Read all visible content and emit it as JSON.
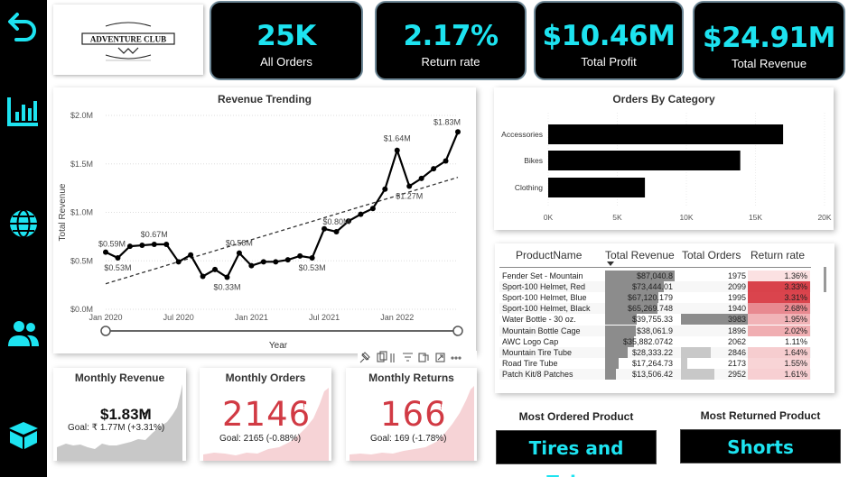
{
  "nav": {
    "items": [
      "back-arrow-icon",
      "chart-icon",
      "globe-icon",
      "users-icon",
      "box-icon"
    ]
  },
  "logo": {
    "text": "ADVENTURE CLUB"
  },
  "kpis": [
    {
      "value": "25K",
      "label": "All Orders"
    },
    {
      "value": "2.17%",
      "label": "Return rate"
    },
    {
      "value": "$10.46M",
      "label": "Total Profit"
    },
    {
      "value": "$24.91M",
      "label": "Total Revenue"
    }
  ],
  "revenue_chart": {
    "title": "Revenue Trending",
    "ylabel": "Total Revenue",
    "xlabel": "Year",
    "y_ticks": [
      "$2.0M",
      "$1.5M",
      "$1.0M",
      "$0.5M",
      "$0.0M"
    ],
    "x_ticks": [
      "Jan 2020",
      "Jul 2020",
      "Jan 2021",
      "Jul 2021",
      "Jan 2022"
    ],
    "data_labels": [
      "$0.59M",
      "$0.53M",
      "$0.67M",
      "$0.33M",
      "$0.58M",
      "$0.80M",
      "$0.53M",
      "$1.64M",
      "$1.27M",
      "$1.83M"
    ]
  },
  "chart_data": [
    {
      "type": "line",
      "title": "Revenue Trending",
      "xlabel": "Year",
      "ylabel": "Total Revenue",
      "ylim": [
        0,
        2.0
      ],
      "x": [
        "2020-01",
        "2020-02",
        "2020-03",
        "2020-04",
        "2020-05",
        "2020-06",
        "2020-07",
        "2020-08",
        "2020-09",
        "2020-10",
        "2020-11",
        "2020-12",
        "2021-01",
        "2021-02",
        "2021-03",
        "2021-04",
        "2021-05",
        "2021-06",
        "2021-07",
        "2021-08",
        "2021-09",
        "2021-10",
        "2021-11",
        "2021-12",
        "2022-01",
        "2022-02",
        "2022-03",
        "2022-04",
        "2022-05",
        "2022-06"
      ],
      "series": [
        {
          "values": [
            0.59,
            0.53,
            0.65,
            0.66,
            0.67,
            0.67,
            0.49,
            0.56,
            0.34,
            0.41,
            0.33,
            0.58,
            0.45,
            0.49,
            0.49,
            0.51,
            0.55,
            0.53,
            0.83,
            0.8,
            0.91,
            0.98,
            1.04,
            1.24,
            1.64,
            1.27,
            1.35,
            1.45,
            1.53,
            1.83
          ]
        }
      ],
      "trend_line": true,
      "grid": true
    },
    {
      "type": "bar",
      "title": "Orders By Category",
      "categories": [
        "Accessories",
        "Bikes",
        "Clothing"
      ],
      "values": [
        17000,
        13900,
        7000
      ],
      "xticks": [
        "0K",
        "5K",
        "10K",
        "15K",
        "20K"
      ],
      "xlim": [
        0,
        20000
      ]
    }
  ],
  "category_chart": {
    "title": "Orders By Category",
    "categories": [
      "Accessories",
      "Bikes",
      "Clothing"
    ],
    "xticks": [
      "0K",
      "5K",
      "10K",
      "15K",
      "20K"
    ]
  },
  "product_table": {
    "headers": [
      "ProductName",
      "Total Revenue",
      "Total Orders",
      "Return rate"
    ],
    "rows": [
      {
        "name": "Fender Set - Mountain",
        "revenue": "$87,040.8",
        "orders": "1975",
        "return": "1.36%",
        "rev_frac": 1.0,
        "ord_frac": 0.0,
        "ret_color": "#fbe1e2"
      },
      {
        "name": "Sport-100 Helmet, Red",
        "revenue": "$73,444.01",
        "orders": "2099",
        "return": "3.33%",
        "rev_frac": 0.84,
        "ord_frac": 0.0,
        "ret_color": "#d9424b"
      },
      {
        "name": "Sport-100 Helmet, Blue",
        "revenue": "$67,120.179",
        "orders": "1995",
        "return": "3.31%",
        "rev_frac": 0.77,
        "ord_frac": 0.0,
        "ret_color": "#da444d"
      },
      {
        "name": "Sport-100 Helmet, Black",
        "revenue": "$65,269.748",
        "orders": "1940",
        "return": "2.68%",
        "rev_frac": 0.75,
        "ord_frac": 0.0,
        "ret_color": "#e88990"
      },
      {
        "name": "Water Bottle - 30 oz.",
        "revenue": "$39,755.33",
        "orders": "3983",
        "return": "1.95%",
        "rev_frac": 0.46,
        "ord_frac": 1.0,
        "ret_color": "#f1b3b7"
      },
      {
        "name": "Mountain Bottle Cage",
        "revenue": "$38,061.9",
        "orders": "1896",
        "return": "2.02%",
        "rev_frac": 0.44,
        "ord_frac": 0.0,
        "ret_color": "#f0aeb2"
      },
      {
        "name": "AWC Logo Cap",
        "revenue": "$35,882.0742",
        "orders": "2062",
        "return": "1.11%",
        "rev_frac": 0.41,
        "ord_frac": 0.0,
        "ret_color": "#ffffff"
      },
      {
        "name": "Mountain Tire Tube",
        "revenue": "$28,333.22",
        "orders": "2846",
        "return": "1.64%",
        "rev_frac": 0.33,
        "ord_frac": 0.45,
        "ret_color": "#f6cdcf"
      },
      {
        "name": "Road Tire Tube",
        "revenue": "$17,264.73",
        "orders": "2173",
        "return": "1.55%",
        "rev_frac": 0.2,
        "ord_frac": 0.1,
        "ret_color": "#f8d4d6"
      },
      {
        "name": "Patch Kit/8 Patches",
        "revenue": "$13,506.42",
        "orders": "2952",
        "return": "1.61%",
        "rev_frac": 0.15,
        "ord_frac": 0.5,
        "ret_color": "#f7cfd2"
      }
    ]
  },
  "monthly_revenue": {
    "title": "Monthly Revenue",
    "value": "$1.83M",
    "check": "✓",
    "goal": "Goal: ₹ 1.77M (+3.31%)"
  },
  "monthly_orders": {
    "title": "Monthly Orders",
    "value": "2146",
    "mark": "!",
    "goal": "Goal: 2165 (-0.88%)"
  },
  "monthly_returns": {
    "title": "Monthly Returns",
    "value": "166",
    "mark": "!",
    "goal": "Goal: 169 (-1.78%)"
  },
  "most_ordered": {
    "label": "Most Ordered Product",
    "value": "Tires and Tubes"
  },
  "most_returned": {
    "label": "Most Returned Product",
    "value": "Shorts"
  },
  "colors": {
    "accent": "#1de3f0",
    "kpi_bg": "#000000",
    "negative": "#d13a44",
    "bar": "#000000"
  }
}
